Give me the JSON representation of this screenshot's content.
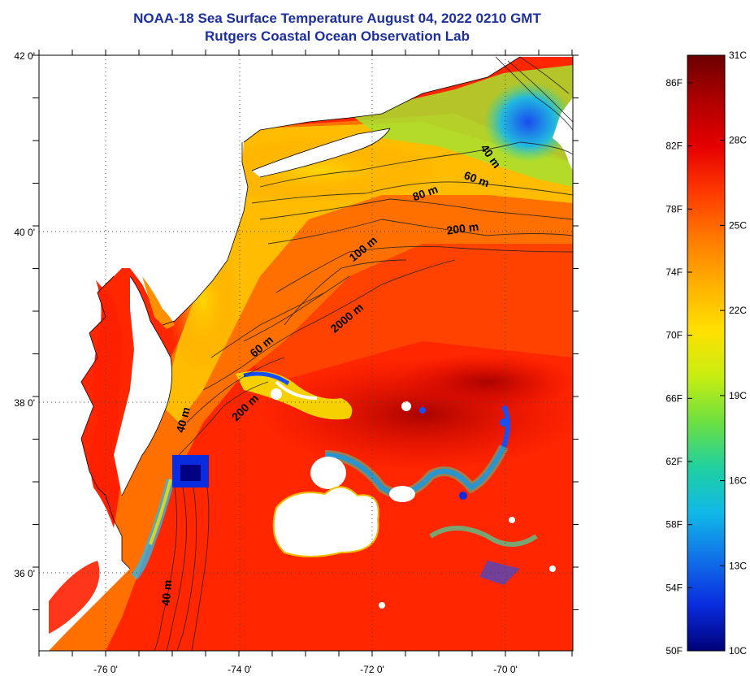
{
  "title_line1": "NOAA-18 Sea Surface Temperature August 04, 2022 0210 GMT",
  "title_line2": "Rutgers Coastal Ocean Observation Lab",
  "latitude_labels": [
    "42 0'",
    "40 0'",
    "38 0'",
    "36 0'"
  ],
  "longitude_labels": [
    "-76 0'",
    "-74 0'",
    "-72 0'",
    "-70 0'"
  ],
  "depth_contour_labels": [
    {
      "text": "40 m"
    },
    {
      "text": "60 m"
    },
    {
      "text": "80 m"
    },
    {
      "text": "200 m"
    },
    {
      "text": "100 m"
    },
    {
      "text": "2000 m"
    },
    {
      "text": "60 m"
    },
    {
      "text": "200 m"
    },
    {
      "text": "40 m"
    },
    {
      "text": "40 m"
    }
  ],
  "colorbar": {
    "fahrenheit_labels": [
      "86F",
      "82F",
      "78F",
      "74F",
      "70F",
      "66F",
      "62F",
      "58F",
      "54F",
      "50F"
    ],
    "celsius_labels": [
      "31C",
      "28C",
      "25C",
      "22C",
      "19C",
      "16C",
      "13C",
      "10C"
    ],
    "colors": [
      "#6b0000",
      "#b00000",
      "#e60000",
      "#ff3a00",
      "#ff7a00",
      "#ffb000",
      "#ffe000",
      "#c8ee10",
      "#6ee040",
      "#20d0a0",
      "#10b8e8",
      "#1070e8",
      "#0a2ce0",
      "#000078"
    ]
  },
  "colors": {
    "title": "#1d2f9c",
    "land": "#ffffff",
    "cloud": "#ffffff",
    "warm_water": "#ff2a00"
  }
}
